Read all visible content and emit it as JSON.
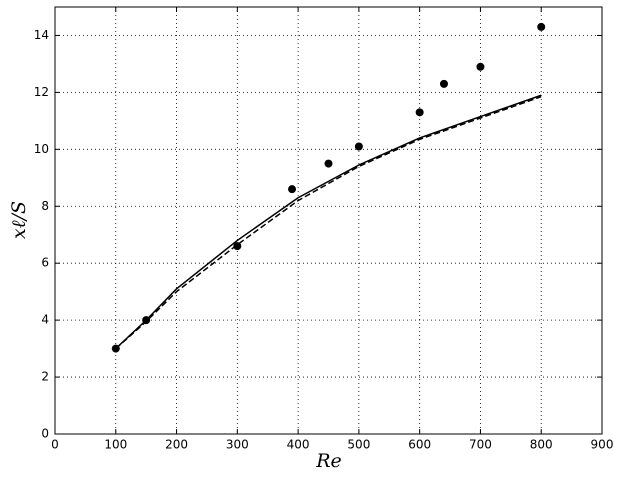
{
  "chart_data": {
    "type": "line",
    "x_label": "Re",
    "y_label": "xℓ/S",
    "xlim": [
      0,
      900
    ],
    "xticks": [
      0,
      100,
      200,
      300,
      400,
      500,
      600,
      700,
      800,
      900
    ],
    "ylim": [
      0,
      15
    ],
    "yticks": [
      0,
      2,
      4,
      6,
      8,
      10,
      12,
      14
    ],
    "grid": true,
    "series": [
      {
        "mode": "line",
        "style": "solid",
        "color": "#000000",
        "x": [
          100,
          150,
          200,
          300,
          400,
          500,
          600,
          700,
          800
        ],
        "values": [
          3.0,
          4.0,
          5.1,
          6.8,
          8.3,
          9.45,
          10.4,
          11.15,
          11.9
        ]
      },
      {
        "mode": "line",
        "style": "dashed",
        "color": "#000000",
        "x": [
          100,
          150,
          200,
          300,
          400,
          500,
          600,
          700,
          800
        ],
        "values": [
          3.0,
          3.95,
          5.0,
          6.65,
          8.2,
          9.4,
          10.35,
          11.1,
          11.85
        ]
      },
      {
        "mode": "scatter",
        "color": "#000000",
        "x": [
          100,
          150,
          300,
          390,
          450,
          500,
          600,
          640,
          700,
          800
        ],
        "values": [
          3.0,
          4.0,
          6.6,
          8.6,
          9.5,
          10.1,
          11.3,
          12.3,
          12.9,
          14.3
        ]
      }
    ]
  }
}
